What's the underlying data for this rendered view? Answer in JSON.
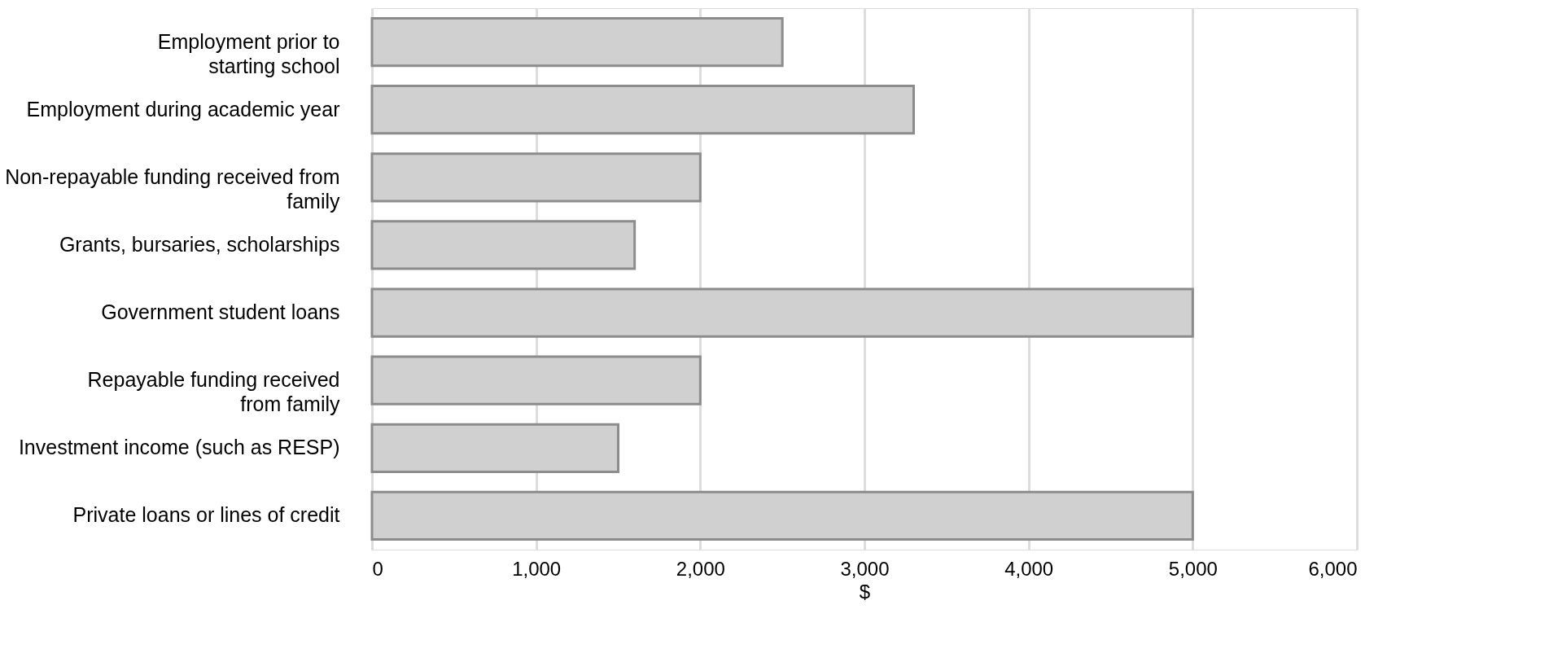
{
  "chart_data": {
    "type": "bar",
    "orientation": "horizontal",
    "xlabel": "$",
    "categories": [
      "Employment prior to\nstarting school",
      "Employment during academic year",
      "Non-repayable funding received from\nfamily",
      "Grants, bursaries, scholarships",
      "Government student loans",
      "Repayable funding received\nfrom family",
      "Investment income (such as RESP)",
      "Private loans or lines of credit"
    ],
    "values": [
      2500,
      3300,
      2000,
      1600,
      5000,
      2000,
      1500,
      5000
    ],
    "color": "#d0d0d0",
    "xlim": [
      0,
      6000
    ],
    "xticks": [
      0,
      {
        "value": 1000,
        "label": "1,000"
      },
      {
        "value": 2000,
        "label": "2,000"
      },
      {
        "value": 3000,
        "label": "3,000"
      },
      {
        "value": 4000,
        "label": "4,000"
      },
      {
        "value": 5000,
        "label": "5,000"
      },
      {
        "value": 6000,
        "label": "6,000"
      }
    ],
    "grid": "x"
  }
}
